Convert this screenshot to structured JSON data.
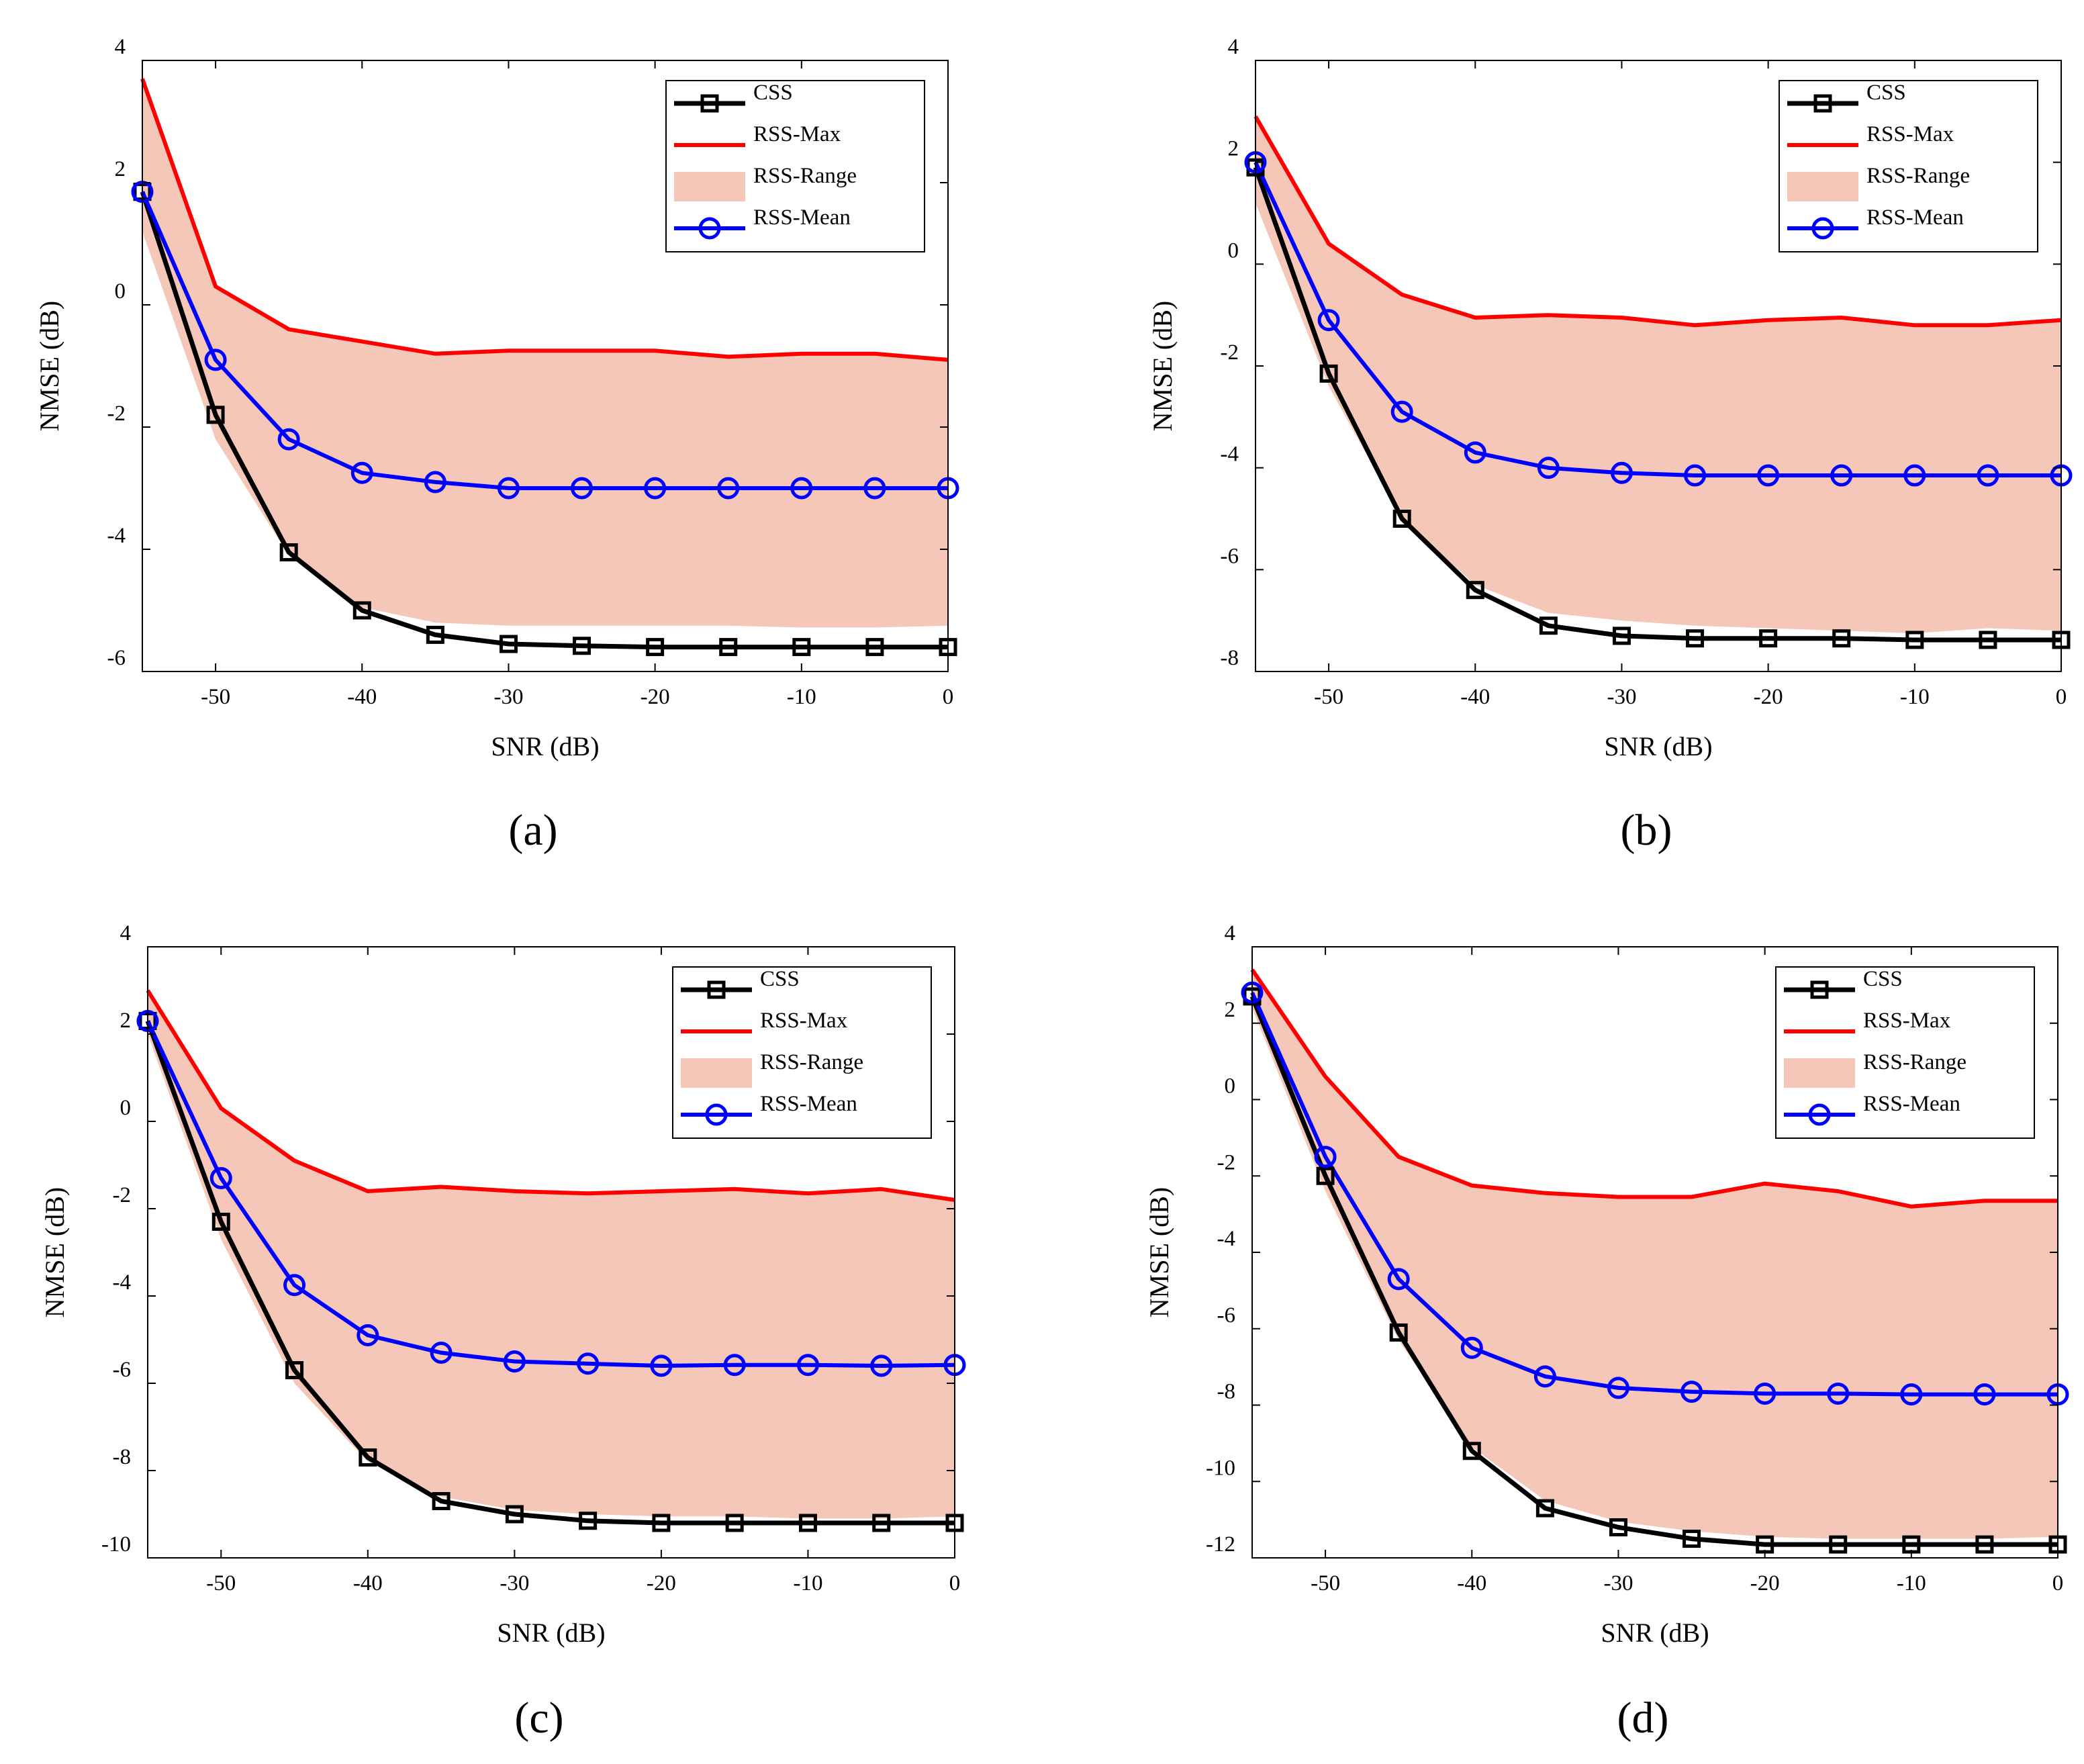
{
  "chart_data": [
    {
      "type": "line",
      "panel": "(a)",
      "xlabel": "SNR (dB)",
      "ylabel": "NMSE (dB)",
      "xlim": [
        -55,
        0
      ],
      "ylim": [
        -6,
        4
      ],
      "xticks": [
        -50,
        -40,
        -30,
        -20,
        -10,
        0
      ],
      "yticks": [
        -6,
        -4,
        -2,
        0,
        2,
        4
      ],
      "x": [
        -55,
        -50,
        -45,
        -40,
        -35,
        -30,
        -25,
        -20,
        -15,
        -10,
        -5,
        0
      ],
      "series": [
        {
          "name": "CSS",
          "values": [
            1.85,
            -1.8,
            -4.05,
            -5.0,
            -5.4,
            -5.55,
            -5.58,
            -5.6,
            -5.6,
            -5.6,
            -5.6,
            -5.6
          ]
        },
        {
          "name": "RSS-Max",
          "values": [
            3.7,
            0.3,
            -0.4,
            -0.6,
            -0.8,
            -0.75,
            -0.75,
            -0.75,
            -0.85,
            -0.8,
            -0.8,
            -0.9
          ]
        },
        {
          "name": "RSS-Range",
          "lower": [
            1.2,
            -2.2,
            -4.1,
            -4.95,
            -5.2,
            -5.25,
            -5.25,
            -5.25,
            -5.25,
            -5.28,
            -5.28,
            -5.25
          ],
          "upper": [
            3.7,
            0.3,
            -0.4,
            -0.6,
            -0.8,
            -0.75,
            -0.75,
            -0.75,
            -0.85,
            -0.8,
            -0.8,
            -0.9
          ]
        },
        {
          "name": "RSS-Mean",
          "values": [
            1.85,
            -0.9,
            -2.2,
            -2.75,
            -2.9,
            -3.0,
            -3.0,
            -3.0,
            -3.0,
            -3.0,
            -3.0,
            -3.0
          ]
        }
      ]
    },
    {
      "type": "line",
      "panel": "(b)",
      "xlabel": "SNR (dB)",
      "ylabel": "NMSE (dB)",
      "xlim": [
        -55,
        0
      ],
      "ylim": [
        -8,
        4
      ],
      "xticks": [
        -50,
        -40,
        -30,
        -20,
        -10,
        0
      ],
      "yticks": [
        -8,
        -6,
        -4,
        -2,
        0,
        2,
        4
      ],
      "x": [
        -55,
        -50,
        -45,
        -40,
        -35,
        -30,
        -25,
        -20,
        -15,
        -10,
        -5,
        0
      ],
      "series": [
        {
          "name": "CSS",
          "values": [
            1.9,
            -2.15,
            -5.0,
            -6.4,
            -7.1,
            -7.3,
            -7.35,
            -7.35,
            -7.35,
            -7.38,
            -7.38,
            -7.38
          ]
        },
        {
          "name": "RSS-Max",
          "values": [
            2.9,
            0.4,
            -0.6,
            -1.05,
            -1.0,
            -1.05,
            -1.2,
            -1.1,
            -1.05,
            -1.2,
            -1.2,
            -1.1
          ]
        },
        {
          "name": "RSS-Range",
          "lower": [
            1.2,
            -2.4,
            -5.0,
            -6.3,
            -6.85,
            -7.0,
            -7.1,
            -7.15,
            -7.2,
            -7.25,
            -7.15,
            -7.2
          ],
          "upper": [
            2.9,
            0.4,
            -0.6,
            -1.05,
            -1.0,
            -1.05,
            -1.2,
            -1.1,
            -1.05,
            -1.2,
            -1.2,
            -1.1
          ]
        },
        {
          "name": "RSS-Mean",
          "values": [
            2.0,
            -1.1,
            -2.9,
            -3.7,
            -4.0,
            -4.1,
            -4.15,
            -4.15,
            -4.15,
            -4.15,
            -4.15,
            -4.15
          ]
        }
      ]
    },
    {
      "type": "line",
      "panel": "(c)",
      "xlabel": "SNR (dB)",
      "ylabel": "NMSE (dB)",
      "xlim": [
        -55,
        0
      ],
      "ylim": [
        -10,
        4
      ],
      "xticks": [
        -50,
        -40,
        -30,
        -20,
        -10,
        0
      ],
      "yticks": [
        -10,
        -8,
        -6,
        -4,
        -2,
        0,
        2,
        4
      ],
      "x": [
        -55,
        -50,
        -45,
        -40,
        -35,
        -30,
        -25,
        -20,
        -15,
        -10,
        -5,
        0
      ],
      "series": [
        {
          "name": "CSS",
          "values": [
            2.3,
            -2.3,
            -5.7,
            -7.7,
            -8.7,
            -9.0,
            -9.15,
            -9.2,
            -9.2,
            -9.2,
            -9.2,
            -9.2
          ]
        },
        {
          "name": "RSS-Max",
          "values": [
            3.0,
            0.3,
            -0.9,
            -1.6,
            -1.5,
            -1.6,
            -1.65,
            -1.6,
            -1.55,
            -1.65,
            -1.55,
            -1.8
          ]
        },
        {
          "name": "RSS-Range",
          "lower": [
            2.0,
            -2.7,
            -6.0,
            -7.8,
            -8.6,
            -8.9,
            -9.0,
            -9.05,
            -9.05,
            -9.1,
            -9.1,
            -9.05
          ],
          "upper": [
            3.0,
            0.3,
            -0.9,
            -1.6,
            -1.5,
            -1.6,
            -1.65,
            -1.6,
            -1.55,
            -1.65,
            -1.55,
            -1.8
          ]
        },
        {
          "name": "RSS-Mean",
          "values": [
            2.3,
            -1.3,
            -3.75,
            -4.9,
            -5.3,
            -5.5,
            -5.55,
            -5.6,
            -5.58,
            -5.58,
            -5.6,
            -5.58
          ]
        }
      ]
    },
    {
      "type": "line",
      "panel": "(d)",
      "xlabel": "SNR (dB)",
      "ylabel": "NMSE (dB)",
      "xlim": [
        -55,
        0
      ],
      "ylim": [
        -12,
        4
      ],
      "xticks": [
        -50,
        -40,
        -30,
        -20,
        -10,
        0
      ],
      "yticks": [
        -12,
        -10,
        -8,
        -6,
        -4,
        -2,
        0,
        2,
        4
      ],
      "x": [
        -55,
        -50,
        -45,
        -40,
        -35,
        -30,
        -25,
        -20,
        -15,
        -10,
        -5,
        0
      ],
      "series": [
        {
          "name": "CSS",
          "values": [
            2.7,
            -2.0,
            -6.1,
            -9.2,
            -10.7,
            -11.2,
            -11.5,
            -11.65,
            -11.65,
            -11.65,
            -11.65,
            -11.65
          ]
        },
        {
          "name": "RSS-Max",
          "values": [
            3.4,
            0.6,
            -1.5,
            -2.25,
            -2.45,
            -2.55,
            -2.55,
            -2.2,
            -2.4,
            -2.8,
            -2.65,
            -2.65
          ]
        },
        {
          "name": "RSS-Range",
          "lower": [
            2.4,
            -2.4,
            -6.3,
            -9.1,
            -10.5,
            -11.05,
            -11.3,
            -11.45,
            -11.5,
            -11.5,
            -11.5,
            -11.45
          ],
          "upper": [
            3.4,
            0.6,
            -1.5,
            -2.25,
            -2.45,
            -2.55,
            -2.55,
            -2.2,
            -2.4,
            -2.8,
            -2.65,
            -2.65
          ]
        },
        {
          "name": "RSS-Mean",
          "values": [
            2.8,
            -1.5,
            -4.7,
            -6.5,
            -7.25,
            -7.55,
            -7.65,
            -7.7,
            -7.7,
            -7.72,
            -7.72,
            -7.72
          ]
        }
      ]
    }
  ],
  "colors": {
    "css": "#000000",
    "max": "#ff0000",
    "range": "#f4c7b8",
    "mean": "#0000ff"
  }
}
